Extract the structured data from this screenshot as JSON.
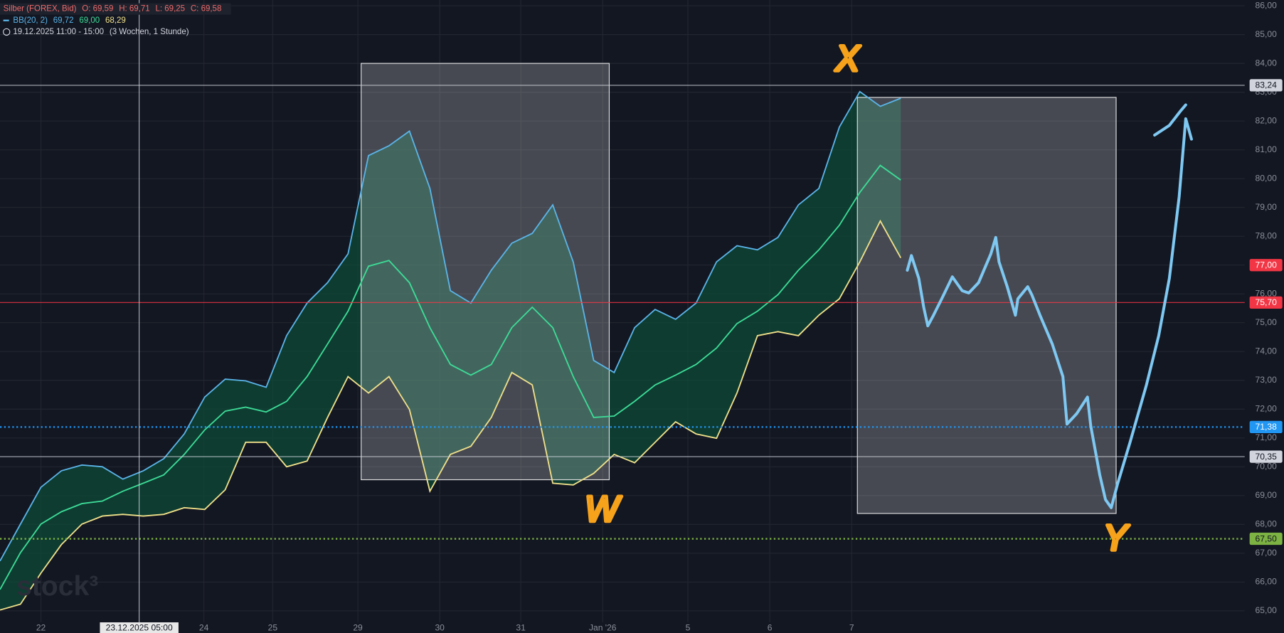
{
  "chart_data": {
    "type": "line",
    "instrument": "Silber (FOREX, Bid)",
    "ohlc": [
      "O: 69,59",
      "H: 69,71",
      "L: 69,25",
      "C: 69,58"
    ],
    "indicator": {
      "label": "BB(20, 2)",
      "values": [
        "69,72",
        "69,00",
        "68,29"
      ]
    },
    "range": "19.12.2025 11:00 - 15:00",
    "range_note": "(3 Wochen, 1 Stunde)",
    "watermark": "stock³",
    "xlim": [
      -0.5,
      14.7
    ],
    "ylim": [
      64.6,
      86.2
    ],
    "xticks": [
      {
        "value": 0,
        "label": "22"
      },
      {
        "value": 1.99,
        "label": "24"
      },
      {
        "value": 2.83,
        "label": "25"
      },
      {
        "value": 3.87,
        "label": "29"
      },
      {
        "value": 4.87,
        "label": "30"
      },
      {
        "value": 5.86,
        "label": "31"
      },
      {
        "value": 6.86,
        "label": "Jan '26"
      },
      {
        "value": 7.9,
        "label": "5"
      },
      {
        "value": 8.9,
        "label": "6"
      },
      {
        "value": 9.9,
        "label": "7"
      }
    ],
    "yticks": [
      {
        "value": 65,
        "label": "65,00"
      },
      {
        "value": 66,
        "label": "66,00"
      },
      {
        "value": 67,
        "label": "67,00"
      },
      {
        "value": 68,
        "label": "68,00"
      },
      {
        "value": 69,
        "label": "69,00"
      },
      {
        "value": 70,
        "label": "70,00"
      },
      {
        "value": 71,
        "label": "71,00"
      },
      {
        "value": 72,
        "label": "72,00"
      },
      {
        "value": 73,
        "label": "73,00"
      },
      {
        "value": 74,
        "label": "74,00"
      },
      {
        "value": 75,
        "label": "75,00"
      },
      {
        "value": 76,
        "label": "76,00"
      },
      {
        "value": 77,
        "label": "77,00"
      },
      {
        "value": 78,
        "label": "78,00"
      },
      {
        "value": 79,
        "label": "79,00"
      },
      {
        "value": 80,
        "label": "80,00"
      },
      {
        "value": 81,
        "label": "81,00"
      },
      {
        "value": 82,
        "label": "82,00"
      },
      {
        "value": 83,
        "label": "83,00"
      },
      {
        "value": 84,
        "label": "84,00"
      },
      {
        "value": 85,
        "label": "85,00"
      },
      {
        "value": 86,
        "label": "86,00"
      }
    ],
    "grid": true,
    "band_fill": "#0e4a37",
    "x": [
      -0.5,
      -0.25,
      0,
      0.25,
      0.5,
      0.75,
      1,
      1.25,
      1.5,
      1.75,
      2,
      2.25,
      2.5,
      2.75,
      3,
      3.25,
      3.5,
      3.75,
      4,
      4.25,
      4.5,
      4.75,
      5,
      5.25,
      5.5,
      5.75,
      6,
      6.25,
      6.5,
      6.75,
      7,
      7.25,
      7.5,
      7.75,
      8,
      8.25,
      8.5,
      8.75,
      9,
      9.25,
      9.5,
      9.75,
      10,
      10.25,
      10.5
    ],
    "series": [
      {
        "color": "#5ab4e8",
        "values": [
          66.73,
          68.01,
          69.29,
          69.86,
          70.06,
          70.0,
          69.57,
          69.86,
          70.28,
          71.14,
          72.42,
          73.04,
          72.98,
          72.76,
          74.55,
          75.68,
          76.39,
          77.39,
          80.8,
          81.14,
          81.65,
          79.66,
          76.11,
          75.68,
          76.82,
          77.76,
          78.1,
          79.09,
          77.11,
          73.69,
          73.27,
          74.83,
          75.46,
          75.12,
          75.68,
          77.11,
          77.67,
          77.53,
          77.96,
          79.09,
          79.66,
          81.79,
          83.02,
          82.51,
          82.79
        ]
      },
      {
        "color": "#3ddc97",
        "values": [
          65.74,
          67.02,
          68.01,
          68.44,
          68.72,
          68.81,
          69.15,
          69.43,
          69.72,
          70.43,
          71.28,
          71.93,
          72.07,
          71.9,
          72.27,
          73.13,
          74.26,
          75.4,
          76.96,
          77.16,
          76.39,
          74.83,
          73.55,
          73.18,
          73.55,
          74.83,
          75.54,
          74.83,
          73.13,
          71.71,
          71.76,
          72.27,
          72.84,
          73.18,
          73.55,
          74.12,
          74.97,
          75.4,
          75.97,
          76.82,
          77.53,
          78.38,
          79.52,
          80.46,
          79.95
        ]
      },
      {
        "color": "#f0e08a",
        "values": [
          65.03,
          65.23,
          66.31,
          67.3,
          68.01,
          68.29,
          68.35,
          68.29,
          68.35,
          68.58,
          68.52,
          69.2,
          70.85,
          70.85,
          70.0,
          70.2,
          71.71,
          73.13,
          72.56,
          73.13,
          71.99,
          69.15,
          70.43,
          70.71,
          71.71,
          73.27,
          72.84,
          69.43,
          69.37,
          69.77,
          70.43,
          70.14,
          70.85,
          71.56,
          71.14,
          70.99,
          72.56,
          74.55,
          74.69,
          74.55,
          75.26,
          75.83,
          77.11,
          78.53,
          77.25
        ]
      }
    ],
    "levels": [
      {
        "value": 83.24,
        "label": "83,24",
        "color": "#d1d4dc",
        "text_color": "#131722",
        "line": "solid"
      },
      {
        "value": 77.0,
        "label": "77,00",
        "color": "#f23645",
        "text_color": "#ffffff",
        "line": "none"
      },
      {
        "value": 75.7,
        "label": "75,70",
        "color": "#f23645",
        "text_color": "#ffffff",
        "line": "solid"
      },
      {
        "value": 71.38,
        "label": "71,38",
        "color": "#2196f3",
        "text_color": "#ffffff",
        "line": "dotted"
      },
      {
        "value": 70.35,
        "label": "70,35",
        "color": "#d1d4dc",
        "text_color": "#131722",
        "line": "solid"
      },
      {
        "value": 67.5,
        "label": "67,50",
        "color": "#7cb342",
        "text_color": "#131722",
        "line": "dotted"
      }
    ],
    "boxes": [
      {
        "x": [
          3.91,
          6.94
        ],
        "y": [
          69.55,
          84.0
        ]
      },
      {
        "x": [
          9.97,
          13.13
        ],
        "y": [
          68.38,
          82.82
        ]
      }
    ],
    "crosshair": {
      "x": 1.2,
      "label": "23.12.2025 05:00"
    },
    "projection": {
      "color": "#7ec8f2",
      "x": [
        10.58,
        10.63,
        10.72,
        10.78,
        10.83,
        10.9,
        11.0,
        11.13,
        11.25,
        11.33,
        11.45,
        11.6,
        11.66,
        11.7,
        11.8,
        11.9,
        11.93,
        12.05,
        12.1,
        12.2,
        12.35,
        12.48,
        12.53,
        12.65,
        12.78,
        12.82,
        12.93,
        13.0,
        13.07,
        13.15,
        13.3,
        13.5,
        13.65,
        13.78,
        13.9,
        13.98,
        14.05,
        null,
        13.6,
        13.78,
        13.92,
        13.98
      ],
      "y": [
        76.82,
        77.33,
        76.54,
        75.54,
        74.89,
        75.26,
        75.83,
        76.59,
        76.11,
        76.03,
        76.39,
        77.39,
        77.96,
        77.11,
        76.25,
        75.26,
        75.83,
        76.25,
        75.97,
        75.26,
        74.26,
        73.13,
        71.48,
        71.85,
        72.42,
        71.42,
        69.72,
        68.86,
        68.58,
        69.43,
        70.85,
        72.84,
        74.55,
        76.54,
        79.38,
        82.08,
        81.37,
        null,
        81.51,
        81.85,
        82.36,
        82.56
      ]
    },
    "annotations": [
      {
        "text": "X",
        "x": 9.85,
        "y": 84.07,
        "color": "#f7a21b"
      },
      {
        "text": "W",
        "x": 6.85,
        "y": 68.44,
        "color": "#f7a21b"
      },
      {
        "text": "Y",
        "x": 13.12,
        "y": 67.44,
        "color": "#f7a21b"
      }
    ]
  }
}
